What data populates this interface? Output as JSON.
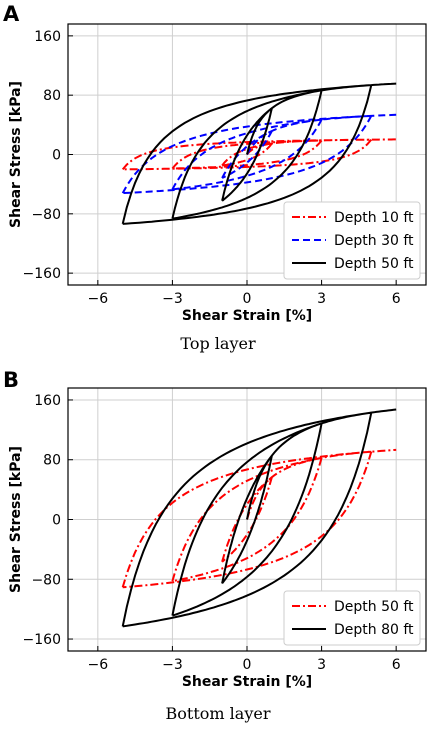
{
  "panels": [
    {
      "letter": "A",
      "caption": "Top layer"
    },
    {
      "letter": "B",
      "caption": "Bottom layer"
    }
  ],
  "chart_data": [
    {
      "type": "line",
      "title": "",
      "xlabel": "Shear Strain [%]",
      "ylabel": "Shear Stress [kPa]",
      "xlim": [
        -7.2,
        7.2
      ],
      "ylim": [
        -176,
        176
      ],
      "xticks": [
        -6,
        -3,
        0,
        3,
        6
      ],
      "xtick_labels": [
        "−6",
        "−3",
        "0",
        "3",
        "6"
      ],
      "yticks": [
        -160,
        -80,
        0,
        80,
        160
      ],
      "ytick_labels": [
        "−160",
        "−80",
        "0",
        "80",
        "160"
      ],
      "grid": true,
      "legend_position": "bottom-right",
      "series": [
        {
          "name": "Depth 10 ft",
          "color": "#ff0000",
          "dash": "dashdot",
          "tau_max": 22,
          "g0": 45
        },
        {
          "name": "Depth 30 ft",
          "color": "#0000ff",
          "dash": "dashed",
          "tau_max": 62,
          "g0": 65
        },
        {
          "name": "Depth 50 ft",
          "color": "#000000",
          "dash": "solid",
          "tau_max": 107,
          "g0": 150
        }
      ],
      "strain_amplitudes": [
        1,
        3,
        5
      ],
      "backbone_strain_max": 6
    },
    {
      "type": "line",
      "title": "",
      "xlabel": "Shear Strain [%]",
      "ylabel": "Shear Stress [kPa]",
      "xlim": [
        -7.2,
        7.2
      ],
      "ylim": [
        -176,
        176
      ],
      "xticks": [
        -6,
        -3,
        0,
        3,
        6
      ],
      "xtick_labels": [
        "−6",
        "−3",
        "0",
        "3",
        "6"
      ],
      "yticks": [
        -160,
        -80,
        0,
        80,
        160
      ],
      "ytick_labels": [
        "−160",
        "−80",
        "0",
        "80",
        "160"
      ],
      "grid": true,
      "legend_position": "bottom-right",
      "series": [
        {
          "name": "Depth 50 ft",
          "color": "#ff0000",
          "dash": "dashdot",
          "tau_max": 107,
          "g0": 120
        },
        {
          "name": "Depth 80 ft",
          "color": "#000000",
          "dash": "solid",
          "tau_max": 172,
          "g0": 170
        }
      ],
      "strain_amplitudes": [
        1,
        3,
        5
      ],
      "backbone_strain_max": 6
    }
  ]
}
